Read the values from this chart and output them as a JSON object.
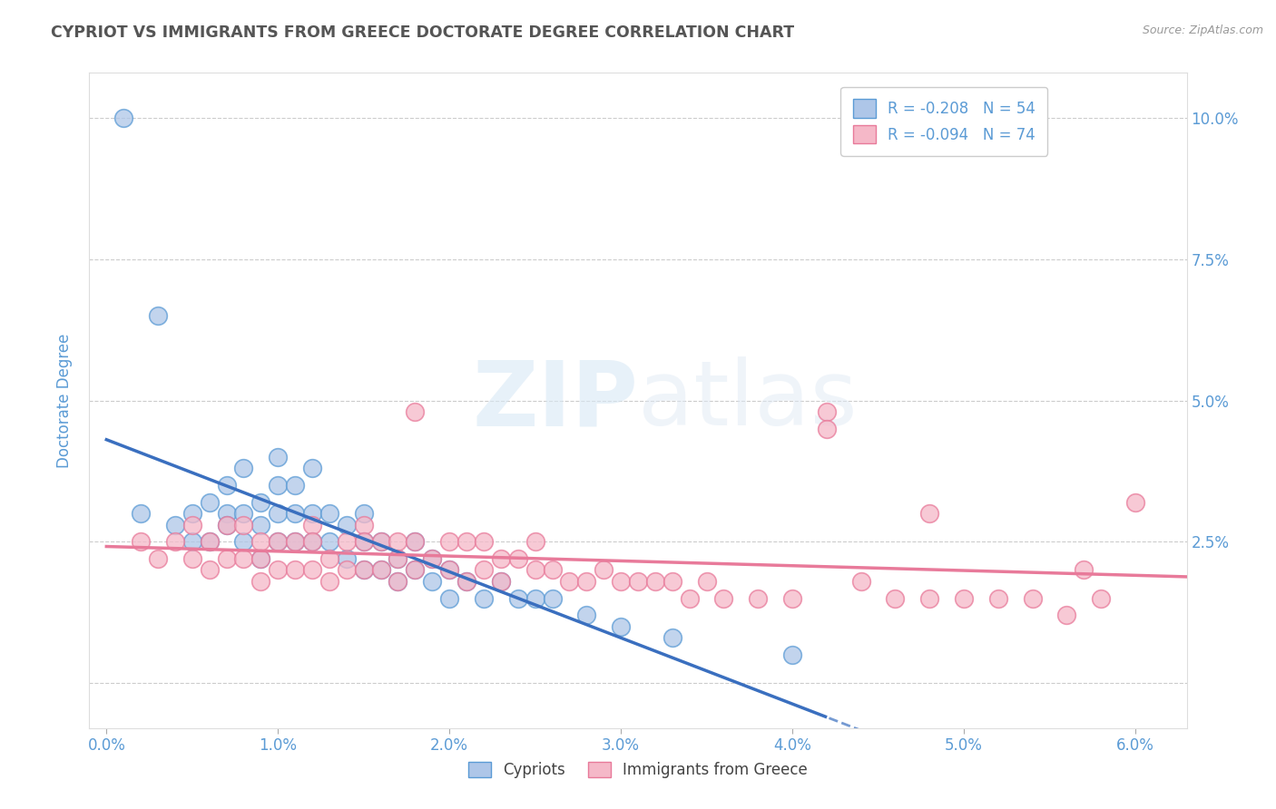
{
  "title": "CYPRIOT VS IMMIGRANTS FROM GREECE DOCTORATE DEGREE CORRELATION CHART",
  "source": "Source: ZipAtlas.com",
  "ylabel": "Doctorate Degree",
  "y_ticks": [
    0.0,
    0.025,
    0.05,
    0.075,
    0.1
  ],
  "y_tick_labels": [
    "",
    "2.5%",
    "5.0%",
    "7.5%",
    "10.0%"
  ],
  "x_ticks": [
    0.0,
    0.01,
    0.02,
    0.03,
    0.04,
    0.05,
    0.06
  ],
  "x_lim": [
    -0.001,
    0.063
  ],
  "y_lim": [
    -0.008,
    0.108
  ],
  "legend_r1": "-0.208",
  "legend_n1": "54",
  "legend_r2": "-0.094",
  "legend_n2": "74",
  "legend_label1": "Cypriots",
  "legend_label2": "Immigrants from Greece",
  "cypriot_color": "#aec6e8",
  "immigrant_color": "#f5b8c8",
  "cypriot_edge_color": "#5b9bd5",
  "immigrant_edge_color": "#e87a9a",
  "cypriot_line_color": "#3a6fbf",
  "immigrant_line_color": "#e87a9a",
  "background_color": "#ffffff",
  "grid_color": "#cccccc",
  "title_color": "#555555",
  "axis_label_color": "#5b9bd5",
  "watermark_color": "#e8eef5",
  "cypriot_x": [
    0.001,
    0.002,
    0.003,
    0.004,
    0.005,
    0.005,
    0.006,
    0.006,
    0.007,
    0.007,
    0.007,
    0.008,
    0.008,
    0.008,
    0.009,
    0.009,
    0.009,
    0.01,
    0.01,
    0.01,
    0.01,
    0.011,
    0.011,
    0.011,
    0.012,
    0.012,
    0.012,
    0.013,
    0.013,
    0.014,
    0.014,
    0.015,
    0.015,
    0.015,
    0.016,
    0.016,
    0.017,
    0.017,
    0.018,
    0.018,
    0.019,
    0.019,
    0.02,
    0.02,
    0.021,
    0.022,
    0.023,
    0.024,
    0.025,
    0.026,
    0.028,
    0.03,
    0.033,
    0.04
  ],
  "cypriot_y": [
    0.1,
    0.03,
    0.065,
    0.028,
    0.03,
    0.025,
    0.032,
    0.025,
    0.035,
    0.03,
    0.028,
    0.038,
    0.03,
    0.025,
    0.032,
    0.028,
    0.022,
    0.04,
    0.035,
    0.03,
    0.025,
    0.035,
    0.03,
    0.025,
    0.038,
    0.03,
    0.025,
    0.03,
    0.025,
    0.028,
    0.022,
    0.03,
    0.025,
    0.02,
    0.025,
    0.02,
    0.022,
    0.018,
    0.025,
    0.02,
    0.022,
    0.018,
    0.02,
    0.015,
    0.018,
    0.015,
    0.018,
    0.015,
    0.015,
    0.015,
    0.012,
    0.01,
    0.008,
    0.005
  ],
  "immigrant_x": [
    0.002,
    0.003,
    0.004,
    0.005,
    0.005,
    0.006,
    0.006,
    0.007,
    0.007,
    0.008,
    0.008,
    0.009,
    0.009,
    0.009,
    0.01,
    0.01,
    0.011,
    0.011,
    0.012,
    0.012,
    0.012,
    0.013,
    0.013,
    0.014,
    0.014,
    0.015,
    0.015,
    0.015,
    0.016,
    0.016,
    0.017,
    0.017,
    0.017,
    0.018,
    0.018,
    0.018,
    0.019,
    0.02,
    0.02,
    0.021,
    0.021,
    0.022,
    0.022,
    0.023,
    0.023,
    0.024,
    0.025,
    0.025,
    0.026,
    0.027,
    0.028,
    0.029,
    0.03,
    0.031,
    0.032,
    0.033,
    0.034,
    0.035,
    0.036,
    0.038,
    0.04,
    0.042,
    0.044,
    0.046,
    0.048,
    0.05,
    0.052,
    0.054,
    0.056,
    0.058,
    0.06,
    0.042,
    0.048,
    0.057
  ],
  "immigrant_y": [
    0.025,
    0.022,
    0.025,
    0.028,
    0.022,
    0.025,
    0.02,
    0.028,
    0.022,
    0.028,
    0.022,
    0.025,
    0.022,
    0.018,
    0.025,
    0.02,
    0.025,
    0.02,
    0.028,
    0.025,
    0.02,
    0.022,
    0.018,
    0.025,
    0.02,
    0.028,
    0.025,
    0.02,
    0.025,
    0.02,
    0.025,
    0.022,
    0.018,
    0.048,
    0.025,
    0.02,
    0.022,
    0.025,
    0.02,
    0.025,
    0.018,
    0.025,
    0.02,
    0.022,
    0.018,
    0.022,
    0.025,
    0.02,
    0.02,
    0.018,
    0.018,
    0.02,
    0.018,
    0.018,
    0.018,
    0.018,
    0.015,
    0.018,
    0.015,
    0.015,
    0.015,
    0.048,
    0.018,
    0.015,
    0.015,
    0.015,
    0.015,
    0.015,
    0.012,
    0.015,
    0.032,
    0.045,
    0.03,
    0.02
  ]
}
